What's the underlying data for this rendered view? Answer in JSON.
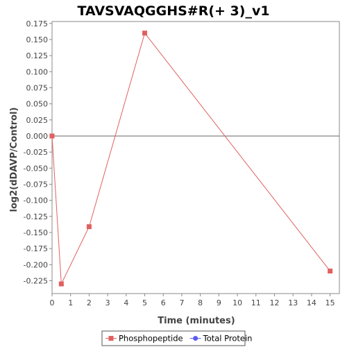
{
  "chart_data": {
    "type": "line",
    "title": "TAVSVAQGGHS#R(+ 3)_v1",
    "xlabel": "Time (minutes)",
    "ylabel": "log2(dDAVP/Control)",
    "xlim": [
      0,
      15.5
    ],
    "ylim": [
      -0.245,
      0.178
    ],
    "x_ticks": [
      0,
      1,
      2,
      3,
      4,
      5,
      6,
      7,
      8,
      9,
      10,
      11,
      12,
      13,
      14,
      15
    ],
    "y_ticks": [
      -0.225,
      -0.2,
      -0.175,
      -0.15,
      -0.125,
      -0.1,
      -0.075,
      -0.05,
      -0.025,
      0.0,
      0.025,
      0.05,
      0.075,
      0.1,
      0.125,
      0.15,
      0.175
    ],
    "y_tick_labels": [
      "-0.225",
      "-0.200",
      "-0.175",
      "-0.150",
      "-0.125",
      "-0.100",
      "-0.075",
      "-0.050",
      "-0.025",
      "0.000",
      "0.025",
      "0.050",
      "0.075",
      "0.100",
      "0.125",
      "0.150",
      "0.175"
    ],
    "zero_line": true,
    "grid": false,
    "legend_position": "bottom-center",
    "series": [
      {
        "name": "Phosphopeptide",
        "color": "#e06060",
        "marker": "square",
        "x": [
          0,
          0.5,
          2,
          5,
          15
        ],
        "y": [
          0.0,
          -0.23,
          -0.141,
          0.16,
          -0.21
        ]
      },
      {
        "name": "Total Protein",
        "color": "#5b5bf0",
        "marker": "circle",
        "x": [],
        "y": []
      }
    ]
  }
}
